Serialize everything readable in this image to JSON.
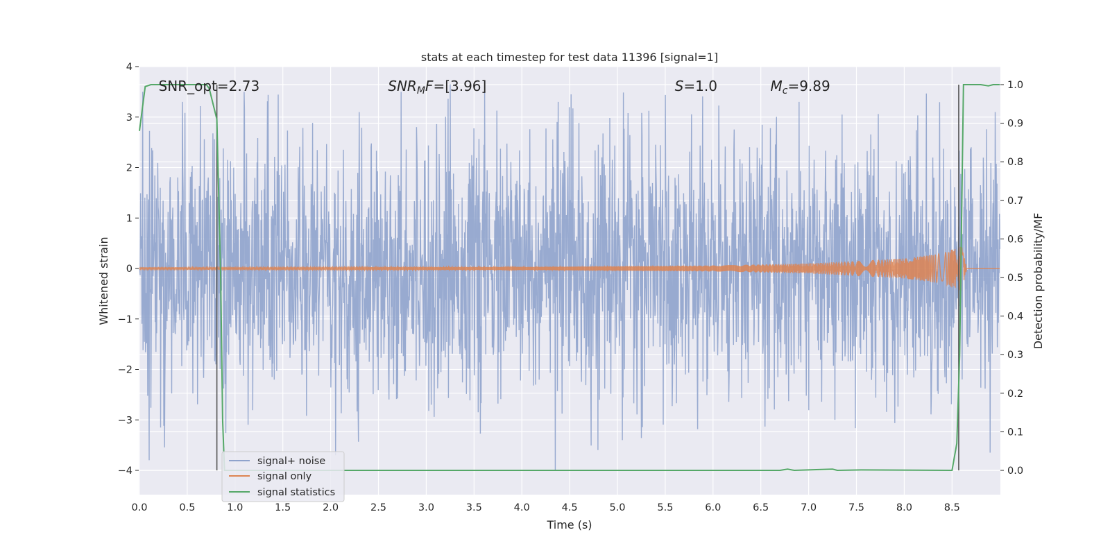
{
  "chart_data": {
    "type": "line",
    "title": "stats at each timestep for test data 11396 [signal=1]",
    "xlabel": "Time (s)",
    "ylabel": "Whitened strain",
    "ylabel_right": "Detection probability/MF",
    "xlim": [
      0.0,
      9.0
    ],
    "ylim": [
      -4.4,
      4.0
    ],
    "ylim_right": [
      -0.05,
      1.05
    ],
    "xticks": [
      "0.0",
      "0.5",
      "1.0",
      "1.5",
      "2.0",
      "2.5",
      "3.0",
      "3.5",
      "4.0",
      "4.5",
      "5.0",
      "5.5",
      "6.0",
      "6.5",
      "7.0",
      "7.5",
      "8.0",
      "8.5"
    ],
    "yticks": [
      "4",
      "3",
      "2",
      "1",
      "0",
      "−1",
      "−2",
      "−3",
      "−4"
    ],
    "yticks_right": [
      "1.0",
      "0.9",
      "0.8",
      "0.7",
      "0.6",
      "0.5",
      "0.4",
      "0.3",
      "0.2",
      "0.1",
      "0.0"
    ],
    "grid": true,
    "legend_position": "lower-left",
    "annotations": [
      {
        "text": "SNR_opt=2.73",
        "x": 0.2,
        "y": 3.6
      },
      {
        "text": "SNR_MF=[3.96]",
        "x": 2.6,
        "y": 3.6
      },
      {
        "text": "S=1.0",
        "x": 5.6,
        "y": 3.6
      },
      {
        "text": "M_c=9.89",
        "x": 6.6,
        "y": 3.6
      }
    ],
    "vlines": [
      0.81,
      8.57
    ],
    "series": [
      {
        "name": "signal+ noise",
        "color": "#8fa3cc",
        "axis": "left",
        "description_values": {
          "typical_amplitude": 1.3,
          "max": 3.65,
          "min": -4.0
        },
        "peaks": [
          {
            "x": 0.1,
            "y": 2.45
          },
          {
            "x": 0.45,
            "y": 3.3
          },
          {
            "x": 1.1,
            "y": 3.15
          },
          {
            "x": 2.3,
            "y": 3.1
          },
          {
            "x": 3.25,
            "y": 3.65
          },
          {
            "x": 4.38,
            "y": 3.3
          },
          {
            "x": 6.9,
            "y": 3.3
          },
          {
            "x": 7.35,
            "y": 3.05
          },
          {
            "x": 8.95,
            "y": 3.1
          }
        ],
        "troughs": [
          {
            "x": 0.1,
            "y": -3.8
          },
          {
            "x": 2.05,
            "y": -3.7
          },
          {
            "x": 4.35,
            "y": -4.0
          },
          {
            "x": 5.05,
            "y": -3.4
          },
          {
            "x": 8.9,
            "y": -3.65
          }
        ]
      },
      {
        "name": "signal only",
        "color": "#dd8452",
        "axis": "left",
        "envelope": [
          {
            "x": 0.0,
            "y": 0.02
          },
          {
            "x": 4.0,
            "y": 0.03
          },
          {
            "x": 6.0,
            "y": 0.06
          },
          {
            "x": 7.0,
            "y": 0.1
          },
          {
            "x": 8.0,
            "y": 0.2
          },
          {
            "x": 8.4,
            "y": 0.3
          },
          {
            "x": 8.6,
            "y": 0.45
          },
          {
            "x": 8.65,
            "y": 0.05
          }
        ]
      },
      {
        "name": "signal statistics",
        "color": "#55a868",
        "axis": "right",
        "points": [
          [
            0.0,
            0.88
          ],
          [
            0.06,
            0.995
          ],
          [
            0.12,
            1.0
          ],
          [
            0.7,
            1.0
          ],
          [
            0.73,
            0.99
          ],
          [
            0.81,
            0.91
          ],
          [
            0.85,
            0.5
          ],
          [
            0.87,
            0.13
          ],
          [
            0.89,
            0.0
          ],
          [
            6.7,
            0.0
          ],
          [
            6.78,
            0.003
          ],
          [
            6.85,
            0.0
          ],
          [
            7.25,
            0.003
          ],
          [
            7.3,
            0.0
          ],
          [
            7.55,
            0.001
          ],
          [
            8.5,
            0.0
          ],
          [
            8.55,
            0.07
          ],
          [
            8.58,
            0.3
          ],
          [
            8.62,
            1.0
          ],
          [
            8.8,
            1.0
          ],
          [
            8.88,
            0.997
          ],
          [
            8.93,
            1.0
          ],
          [
            9.0,
            1.0
          ]
        ]
      }
    ]
  }
}
